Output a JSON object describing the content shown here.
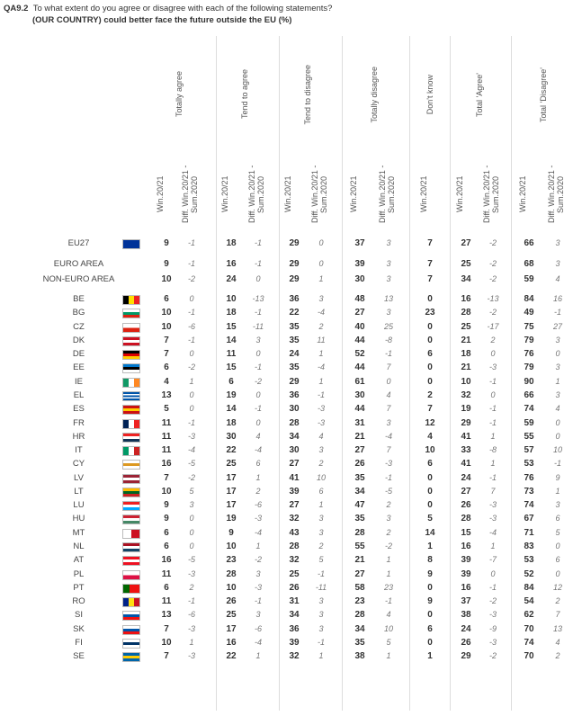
{
  "header": {
    "code": "QA9.2",
    "question": "To what extent do you agree or disagree with each of the following statements?",
    "statement": "(OUR COUNTRY) could better face the future outside the EU (%)"
  },
  "table": {
    "groups": [
      {
        "name": "Totally agree",
        "subs": [
          "Win.20/21",
          "Diff. Win.20/21 - Sum.2020"
        ]
      },
      {
        "name": "Tend to agree",
        "subs": [
          "Win.20/21",
          "Diff. Win.20/21 - Sum.2020"
        ]
      },
      {
        "name": "Tend to disagree",
        "subs": [
          "Win.20/21",
          "Diff. Win.20/21 - Sum.2020"
        ]
      },
      {
        "name": "Totally disagree",
        "subs": [
          "Win.20/21",
          "Diff. Win.20/21 - Sum.2020"
        ]
      },
      {
        "name": "Don't know",
        "subs": [
          "Win.20/21"
        ]
      },
      {
        "name": "Total 'Agree'",
        "subs": [
          "Win.20/21",
          "Diff. Win.20/21 - Sum.2020"
        ]
      },
      {
        "name": "Total 'Disagree'",
        "subs": [
          "Win.20/21",
          "Diff. Win.20/21 - Sum.2020"
        ]
      }
    ],
    "rows": [
      {
        "label": "EU27",
        "flag": [
          "#039"
        ],
        "values": [
          9,
          -1,
          18,
          -1,
          29,
          0,
          37,
          3,
          7,
          27,
          -2,
          66,
          3
        ]
      },
      {
        "label": "EURO AREA",
        "values": [
          9,
          -1,
          16,
          -1,
          29,
          0,
          39,
          3,
          7,
          25,
          -2,
          68,
          3
        ]
      },
      {
        "label": "NON-EURO AREA",
        "values": [
          10,
          -2,
          24,
          0,
          29,
          1,
          30,
          3,
          7,
          34,
          -2,
          59,
          4
        ]
      },
      {
        "label": "BE",
        "flag": [
          "v",
          "#000",
          "#fd0",
          "#e22"
        ],
        "values": [
          6,
          0,
          10,
          -13,
          36,
          3,
          48,
          13,
          0,
          16,
          -13,
          84,
          16
        ]
      },
      {
        "label": "BG",
        "flag": [
          "h",
          "#fff",
          "#096",
          "#d21"
        ],
        "values": [
          10,
          -1,
          18,
          -1,
          22,
          -4,
          27,
          3,
          23,
          28,
          -2,
          49,
          -1
        ]
      },
      {
        "label": "CZ",
        "flag": [
          "h",
          "#fff",
          "#d21"
        ],
        "values": [
          10,
          -6,
          15,
          -11,
          35,
          2,
          40,
          25,
          0,
          25,
          -17,
          75,
          27
        ]
      },
      {
        "label": "DK",
        "flag": [
          "h",
          "#c12",
          "#fff",
          "#c12"
        ],
        "values": [
          7,
          -1,
          14,
          3,
          35,
          11,
          44,
          -8,
          0,
          21,
          2,
          79,
          3
        ]
      },
      {
        "label": "DE",
        "flag": [
          "h",
          "#000",
          "#d00",
          "#fc0"
        ],
        "values": [
          7,
          0,
          11,
          0,
          24,
          1,
          52,
          -1,
          6,
          18,
          0,
          76,
          0
        ]
      },
      {
        "label": "EE",
        "flag": [
          "h",
          "#07c",
          "#000",
          "#fff"
        ],
        "values": [
          6,
          -2,
          15,
          -1,
          35,
          -4,
          44,
          7,
          0,
          21,
          -3,
          79,
          3
        ]
      },
      {
        "label": "IE",
        "flag": [
          "v",
          "#196",
          "#fff",
          "#f82"
        ],
        "values": [
          4,
          1,
          6,
          -2,
          29,
          1,
          61,
          0,
          0,
          10,
          -1,
          90,
          1
        ]
      },
      {
        "label": "EL",
        "flag": [
          "h",
          "#05a",
          "#fff",
          "#05a",
          "#fff",
          "#05a"
        ],
        "values": [
          13,
          0,
          19,
          0,
          36,
          -1,
          30,
          4,
          2,
          32,
          0,
          66,
          3
        ]
      },
      {
        "label": "ES",
        "flag": [
          "h",
          "#c11",
          "#fc0",
          "#c11"
        ],
        "values": [
          5,
          0,
          14,
          -1,
          30,
          -3,
          44,
          7,
          7,
          19,
          -1,
          74,
          4
        ]
      },
      {
        "label": "FR",
        "flag": [
          "v",
          "#025",
          "#fff",
          "#e22"
        ],
        "values": [
          11,
          -1,
          18,
          0,
          28,
          -3,
          31,
          3,
          12,
          29,
          -1,
          59,
          0
        ]
      },
      {
        "label": "HR",
        "flag": [
          "h",
          "#e22",
          "#fff",
          "#135"
        ],
        "values": [
          11,
          -3,
          30,
          4,
          34,
          4,
          21,
          -4,
          4,
          41,
          1,
          55,
          0
        ]
      },
      {
        "label": "IT",
        "flag": [
          "v",
          "#096",
          "#fff",
          "#c22"
        ],
        "values": [
          11,
          -4,
          22,
          -4,
          30,
          3,
          27,
          7,
          10,
          33,
          -8,
          57,
          10
        ]
      },
      {
        "label": "CY",
        "flag": [
          "h",
          "#fff",
          "#d92",
          "#fff"
        ],
        "values": [
          16,
          -5,
          25,
          6,
          27,
          2,
          26,
          -3,
          6,
          41,
          1,
          53,
          -1
        ]
      },
      {
        "label": "LV",
        "flag": [
          "h",
          "#9b2335",
          "#fff",
          "#9b2335"
        ],
        "values": [
          7,
          -2,
          17,
          1,
          41,
          10,
          35,
          -1,
          0,
          24,
          -1,
          76,
          9
        ]
      },
      {
        "label": "LT",
        "flag": [
          "h",
          "#fb0",
          "#062",
          "#c22"
        ],
        "values": [
          10,
          5,
          17,
          2,
          39,
          6,
          34,
          -5,
          0,
          27,
          7,
          73,
          1
        ]
      },
      {
        "label": "LU",
        "flag": [
          "h",
          "#e22",
          "#fff",
          "#0af"
        ],
        "values": [
          9,
          3,
          17,
          -6,
          27,
          1,
          47,
          2,
          0,
          26,
          -3,
          74,
          3
        ]
      },
      {
        "label": "HU",
        "flag": [
          "h",
          "#c23",
          "#fff",
          "#486"
        ],
        "values": [
          9,
          0,
          19,
          -3,
          32,
          3,
          35,
          3,
          5,
          28,
          -3,
          67,
          6
        ]
      },
      {
        "label": "MT",
        "flag": [
          "v",
          "#fff",
          "#c12"
        ],
        "values": [
          6,
          0,
          9,
          -4,
          43,
          3,
          28,
          2,
          14,
          15,
          -4,
          71,
          5
        ]
      },
      {
        "label": "NL",
        "flag": [
          "h",
          "#a12",
          "#fff",
          "#146"
        ],
        "values": [
          6,
          0,
          10,
          1,
          28,
          2,
          55,
          -2,
          1,
          16,
          1,
          83,
          0
        ]
      },
      {
        "label": "AT",
        "flag": [
          "h",
          "#e12",
          "#fff",
          "#e12"
        ],
        "values": [
          16,
          -5,
          23,
          -2,
          32,
          5,
          21,
          1,
          8,
          39,
          -7,
          53,
          6
        ]
      },
      {
        "label": "PL",
        "flag": [
          "h",
          "#fff",
          "#d14"
        ],
        "values": [
          11,
          -3,
          28,
          3,
          25,
          -1,
          27,
          1,
          9,
          39,
          0,
          52,
          0
        ]
      },
      {
        "label": "PT",
        "flag": [
          "v",
          "#060",
          "#060",
          "#e11",
          "#e11",
          "#e11"
        ],
        "values": [
          6,
          2,
          10,
          -3,
          26,
          -11,
          58,
          23,
          0,
          16,
          -1,
          84,
          12
        ]
      },
      {
        "label": "RO",
        "flag": [
          "v",
          "#028",
          "#fd1",
          "#c12"
        ],
        "values": [
          11,
          -1,
          26,
          -1,
          31,
          3,
          23,
          -1,
          9,
          37,
          -2,
          54,
          2
        ]
      },
      {
        "label": "SI",
        "flag": [
          "h",
          "#fff",
          "#05a",
          "#e11"
        ],
        "values": [
          13,
          -6,
          25,
          3,
          34,
          3,
          28,
          4,
          0,
          38,
          -3,
          62,
          7
        ]
      },
      {
        "label": "SK",
        "flag": [
          "h",
          "#fff",
          "#05a",
          "#e11"
        ],
        "values": [
          7,
          -3,
          17,
          -6,
          36,
          3,
          34,
          10,
          6,
          24,
          -9,
          70,
          13
        ]
      },
      {
        "label": "FI",
        "flag": [
          "h",
          "#fff",
          "#036",
          "#fff"
        ],
        "values": [
          10,
          1,
          16,
          -4,
          39,
          -1,
          35,
          5,
          0,
          26,
          -3,
          74,
          4
        ]
      },
      {
        "label": "SE",
        "flag": [
          "h",
          "#06a",
          "#fc0",
          "#06a"
        ],
        "values": [
          7,
          -3,
          22,
          1,
          32,
          1,
          38,
          1,
          1,
          29,
          -2,
          70,
          2
        ]
      }
    ]
  }
}
